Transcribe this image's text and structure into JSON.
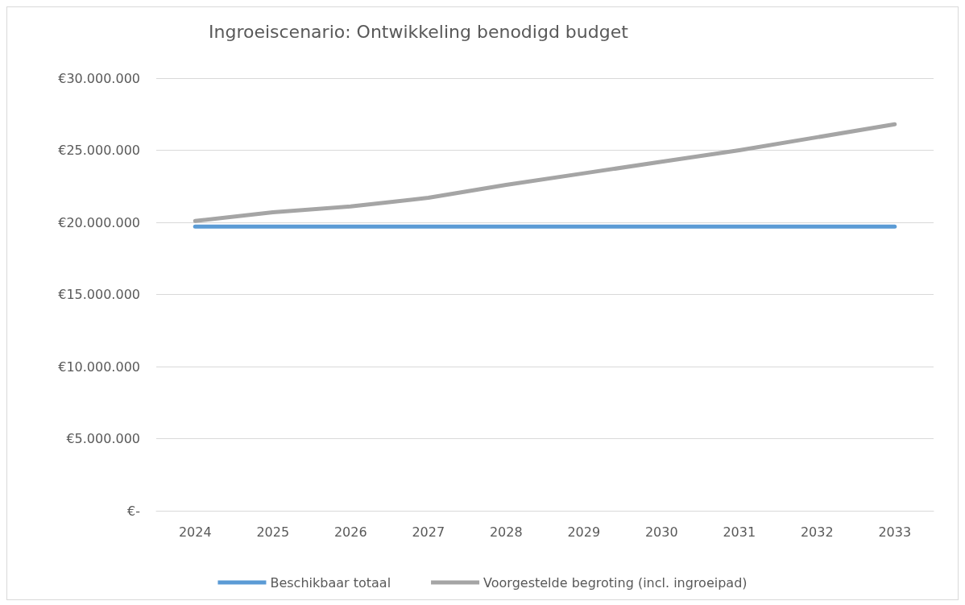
{
  "chart_data": {
    "type": "line",
    "title": "Ingroeiscenario: Ontwikkeling benodigd budget",
    "categories": [
      "2024",
      "2025",
      "2026",
      "2027",
      "2028",
      "2029",
      "2030",
      "2031",
      "2032",
      "2033"
    ],
    "series": [
      {
        "name": "Beschikbaar totaal",
        "color": "#5b9bd5",
        "values": [
          19700000,
          19700000,
          19700000,
          19700000,
          19700000,
          19700000,
          19700000,
          19700000,
          19700000,
          19700000
        ]
      },
      {
        "name": "Voorgestelde begroting (incl. ingroeipad)",
        "color": "#a5a5a5",
        "values": [
          20100000,
          20700000,
          21100000,
          21700000,
          22600000,
          23400000,
          24200000,
          25000000,
          25900000,
          26800000
        ]
      }
    ],
    "ylim": [
      0,
      30000000
    ],
    "yticks": [
      {
        "value": 0,
        "label": "€-"
      },
      {
        "value": 5000000,
        "label": "€5.000.000"
      },
      {
        "value": 10000000,
        "label": "€10.000.000"
      },
      {
        "value": 15000000,
        "label": "€15.000.000"
      },
      {
        "value": 20000000,
        "label": "€20.000.000"
      },
      {
        "value": 25000000,
        "label": "€25.000.000"
      },
      {
        "value": 30000000,
        "label": "€30.000.000"
      }
    ],
    "grid": "y",
    "legend": "bottom",
    "marker": "none",
    "line_style": "solid"
  }
}
